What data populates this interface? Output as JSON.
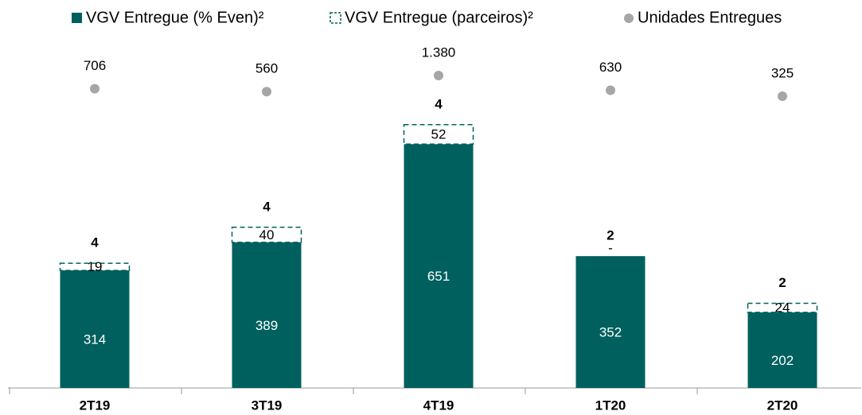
{
  "chart_data": {
    "type": "bar",
    "categories": [
      "2T19",
      "3T19",
      "4T19",
      "1T20",
      "2T20"
    ],
    "series": [
      {
        "name": "VGV Entregue (% Even)²",
        "color": "#00605e",
        "values": [
          314,
          389,
          651,
          352,
          202
        ]
      },
      {
        "name": "VGV Entregue (parceiros)²",
        "color": "#00605e",
        "dashed": true,
        "values": [
          19,
          40,
          52,
          0,
          24
        ],
        "value_labels": [
          "19",
          "40",
          "52",
          "-",
          "24"
        ]
      },
      {
        "name": "Unidades Entregues",
        "color": "#a6a6a6",
        "type": "scatter",
        "values": [
          706,
          560,
          1380,
          630,
          325
        ],
        "value_labels": [
          "706",
          "560",
          "1.380",
          "630",
          "325"
        ]
      }
    ],
    "bar_top_labels": [
      4,
      4,
      4,
      2,
      2
    ],
    "ylim": [
      0,
      900
    ]
  }
}
